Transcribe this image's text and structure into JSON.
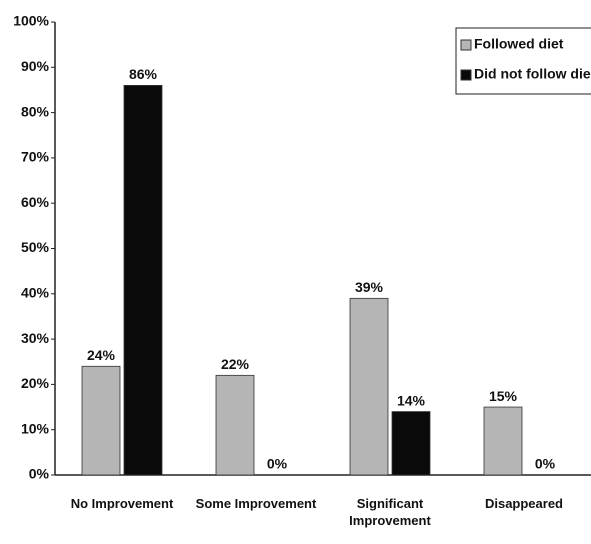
{
  "chart_data": {
    "type": "bar",
    "categories": [
      "No Improvement",
      "Some Improvement",
      "Significant Improvement",
      "Disappeared"
    ],
    "series": [
      {
        "name": "Followed diet",
        "color": "#b5b5b5",
        "values": [
          24,
          22,
          39,
          15
        ],
        "value_labels": [
          "24%",
          "22%",
          "39%",
          "15%"
        ]
      },
      {
        "name": "Did not follow die",
        "color": "#0a0a0a",
        "values": [
          86,
          0,
          14,
          0
        ],
        "value_labels": [
          "86%",
          "0%",
          "14%",
          "0%"
        ]
      }
    ],
    "ylim": [
      0,
      100
    ],
    "yticks": [
      {
        "value": 0,
        "label": "0%"
      },
      {
        "value": 10,
        "label": "10%"
      },
      {
        "value": 20,
        "label": "20%"
      },
      {
        "value": 30,
        "label": "30%"
      },
      {
        "value": 40,
        "label": "40%"
      },
      {
        "value": 50,
        "label": "50%"
      },
      {
        "value": 60,
        "label": "60%"
      },
      {
        "value": 70,
        "label": "70%"
      },
      {
        "value": 80,
        "label": "80%"
      },
      {
        "value": 90,
        "label": "90%"
      },
      {
        "value": 100,
        "label": "100%"
      }
    ],
    "legend": "upper right",
    "grid": false
  }
}
